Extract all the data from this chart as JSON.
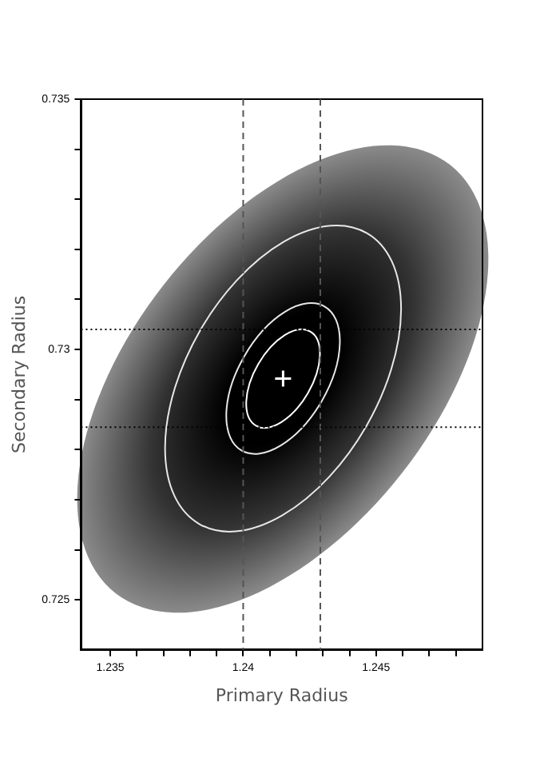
{
  "chart_data": {
    "type": "scatter",
    "xlabel": "Primary Radius",
    "ylabel": "Secondary Radius",
    "xlim": [
      1.2339,
      1.249
    ],
    "ylim": [
      0.724,
      0.735
    ],
    "xticks": [
      1.235,
      {
        "value": 1.236,
        "label": null
      },
      {
        "value": 1.237,
        "label": null
      },
      {
        "value": 1.238,
        "label": null
      },
      {
        "value": 1.239,
        "label": null
      },
      1.24,
      {
        "value": 1.241,
        "label": null
      },
      {
        "value": 1.242,
        "label": null
      },
      {
        "value": 1.243,
        "label": null
      },
      {
        "value": 1.244,
        "label": null
      },
      1.245,
      {
        "value": 1.246,
        "label": null
      },
      {
        "value": 1.247,
        "label": null
      },
      {
        "value": 1.248,
        "label": null
      }
    ],
    "yticks": [
      0.725,
      {
        "value": 0.726,
        "label": null
      },
      {
        "value": 0.727,
        "label": null
      },
      {
        "value": 0.728,
        "label": null
      },
      {
        "value": 0.729,
        "label": null
      },
      0.73,
      {
        "value": 0.731,
        "label": null
      },
      {
        "value": 0.732,
        "label": null
      },
      {
        "value": 0.733,
        "label": null
      },
      {
        "value": 0.734,
        "label": null
      },
      0.735
    ],
    "grid": false,
    "legend": false,
    "marker": "cross",
    "series": [
      {
        "color": "#ffffff",
        "x": [
          1.2415
        ],
        "values": [
          0.72942
        ]
      }
    ],
    "ref_lines": [
      {
        "axis": "x",
        "value": 1.24,
        "color": "#555555",
        "line_style": "dashed"
      },
      {
        "axis": "x",
        "value": 1.2429,
        "color": "#555555",
        "line_style": "dashed"
      },
      {
        "axis": "y",
        "value": 0.7304,
        "color": "#000000",
        "line_style": "dotted"
      },
      {
        "axis": "y",
        "value": 0.72845,
        "color": "#000000",
        "line_style": "dotted"
      }
    ]
  }
}
